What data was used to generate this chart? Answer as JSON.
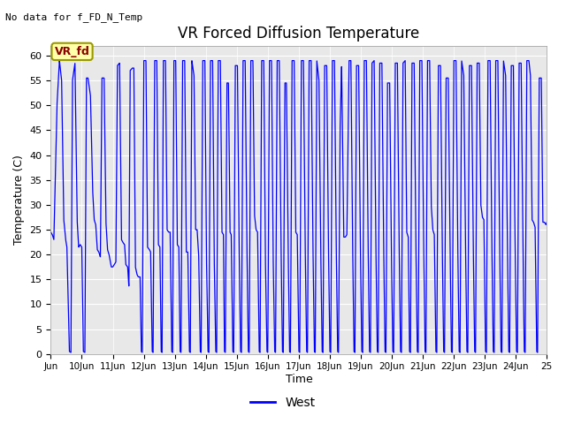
{
  "title": "VR Forced Diffusion Temperature",
  "top_left_text": "No data for f_FD_N_Temp",
  "ylabel": "Temperature (C)",
  "xlabel": "Time",
  "legend_label": "West",
  "legend_line_color": "#0000ff",
  "line_color": "#0000ff",
  "axes_facecolor": "#e8e8e8",
  "fig_facecolor": "#ffffff",
  "ylim": [
    0,
    62
  ],
  "yticks": [
    0,
    5,
    10,
    15,
    20,
    25,
    30,
    35,
    40,
    45,
    50,
    55,
    60
  ],
  "xtick_labels": [
    "Jun",
    "10Jun",
    "11Jun",
    "12Jun",
    "13Jun",
    "14Jun",
    "15Jun",
    "16Jun",
    "17Jun",
    "18Jun",
    "19Jun",
    "20Jun",
    "21Jun",
    "22Jun",
    "23Jun",
    "24Jun",
    "25"
  ],
  "vr_fd_label": "VR_fd",
  "keypoints": [
    [
      0.0,
      24.5
    ],
    [
      0.05,
      24.0
    ],
    [
      0.1,
      23.0
    ],
    [
      0.2,
      50.0
    ],
    [
      0.28,
      59.0
    ],
    [
      0.35,
      55.0
    ],
    [
      0.42,
      27.0
    ],
    [
      0.48,
      23.0
    ],
    [
      0.52,
      21.5
    ],
    [
      0.6,
      0.5
    ],
    [
      0.65,
      0.3
    ],
    [
      0.7,
      55.0
    ],
    [
      0.78,
      58.5
    ],
    [
      0.85,
      27.0
    ],
    [
      0.9,
      21.5
    ],
    [
      0.95,
      22.0
    ],
    [
      1.0,
      21.5
    ],
    [
      1.05,
      0.5
    ],
    [
      1.1,
      0.3
    ],
    [
      1.15,
      55.5
    ],
    [
      1.2,
      55.5
    ],
    [
      1.28,
      52.0
    ],
    [
      1.35,
      33.0
    ],
    [
      1.4,
      27.0
    ],
    [
      1.45,
      26.0
    ],
    [
      1.5,
      21.0
    ],
    [
      1.55,
      20.5
    ],
    [
      1.6,
      19.5
    ],
    [
      1.65,
      55.5
    ],
    [
      1.72,
      55.5
    ],
    [
      1.78,
      26.5
    ],
    [
      1.83,
      21.0
    ],
    [
      1.88,
      20.0
    ],
    [
      1.95,
      17.5
    ],
    [
      2.0,
      17.5
    ],
    [
      2.05,
      18.0
    ],
    [
      2.1,
      18.5
    ],
    [
      2.15,
      58.0
    ],
    [
      2.22,
      58.5
    ],
    [
      2.28,
      23.0
    ],
    [
      2.32,
      22.5
    ],
    [
      2.38,
      22.0
    ],
    [
      2.42,
      18.0
    ],
    [
      2.48,
      17.5
    ],
    [
      2.52,
      13.5
    ],
    [
      2.56,
      57.0
    ],
    [
      2.63,
      57.5
    ],
    [
      2.68,
      57.5
    ],
    [
      2.73,
      17.5
    ],
    [
      2.78,
      16.0
    ],
    [
      2.82,
      15.5
    ],
    [
      2.88,
      15.5
    ],
    [
      2.92,
      0.5
    ],
    [
      2.95,
      0.3
    ],
    [
      3.0,
      59.0
    ],
    [
      3.07,
      59.0
    ],
    [
      3.12,
      21.5
    ],
    [
      3.18,
      21.0
    ],
    [
      3.22,
      20.5
    ],
    [
      3.27,
      0.5
    ],
    [
      3.3,
      0.3
    ],
    [
      3.35,
      59.0
    ],
    [
      3.42,
      59.0
    ],
    [
      3.47,
      22.0
    ],
    [
      3.52,
      21.5
    ],
    [
      3.56,
      0.5
    ],
    [
      3.59,
      0.3
    ],
    [
      3.63,
      59.0
    ],
    [
      3.7,
      59.0
    ],
    [
      3.75,
      25.0
    ],
    [
      3.8,
      24.5
    ],
    [
      3.85,
      24.5
    ],
    [
      3.9,
      0.5
    ],
    [
      3.93,
      0.3
    ],
    [
      3.97,
      59.0
    ],
    [
      4.03,
      59.0
    ],
    [
      4.08,
      22.0
    ],
    [
      4.13,
      21.5
    ],
    [
      4.17,
      0.5
    ],
    [
      4.2,
      0.3
    ],
    [
      4.25,
      59.0
    ],
    [
      4.32,
      59.0
    ],
    [
      4.37,
      20.5
    ],
    [
      4.42,
      20.5
    ],
    [
      4.47,
      0.5
    ],
    [
      4.5,
      0.3
    ],
    [
      4.55,
      59.0
    ],
    [
      4.62,
      56.0
    ],
    [
      4.67,
      25.0
    ],
    [
      4.72,
      25.0
    ],
    [
      4.77,
      20.0
    ],
    [
      4.82,
      0.5
    ],
    [
      4.85,
      0.3
    ],
    [
      4.9,
      59.0
    ],
    [
      4.97,
      59.0
    ],
    [
      5.02,
      20.0
    ],
    [
      5.07,
      0.5
    ],
    [
      5.1,
      0.3
    ],
    [
      5.15,
      59.0
    ],
    [
      5.22,
      59.0
    ],
    [
      5.27,
      20.0
    ],
    [
      5.32,
      0.5
    ],
    [
      5.35,
      0.3
    ],
    [
      5.4,
      59.0
    ],
    [
      5.47,
      59.0
    ],
    [
      5.52,
      24.5
    ],
    [
      5.57,
      24.0
    ],
    [
      5.6,
      0.5
    ],
    [
      5.63,
      0.3
    ],
    [
      5.68,
      54.5
    ],
    [
      5.73,
      54.5
    ],
    [
      5.78,
      24.5
    ],
    [
      5.82,
      24.0
    ],
    [
      5.87,
      0.5
    ],
    [
      5.9,
      0.3
    ],
    [
      5.95,
      58.0
    ],
    [
      6.02,
      58.0
    ],
    [
      6.07,
      24.0
    ],
    [
      6.12,
      0.5
    ],
    [
      6.15,
      0.3
    ],
    [
      6.2,
      59.0
    ],
    [
      6.27,
      59.0
    ],
    [
      6.32,
      25.0
    ],
    [
      6.37,
      0.5
    ],
    [
      6.4,
      0.3
    ],
    [
      6.45,
      59.0
    ],
    [
      6.52,
      59.0
    ],
    [
      6.57,
      28.0
    ],
    [
      6.62,
      25.0
    ],
    [
      6.67,
      24.5
    ],
    [
      6.72,
      0.5
    ],
    [
      6.75,
      0.3
    ],
    [
      6.8,
      59.0
    ],
    [
      6.87,
      59.0
    ],
    [
      6.92,
      20.0
    ],
    [
      6.97,
      0.5
    ],
    [
      7.0,
      0.3
    ],
    [
      7.05,
      59.0
    ],
    [
      7.12,
      59.0
    ],
    [
      7.17,
      20.5
    ],
    [
      7.22,
      0.5
    ],
    [
      7.25,
      0.3
    ],
    [
      7.3,
      59.0
    ],
    [
      7.37,
      59.0
    ],
    [
      7.42,
      25.0
    ],
    [
      7.47,
      0.5
    ],
    [
      7.5,
      0.3
    ],
    [
      7.55,
      54.5
    ],
    [
      7.6,
      54.5
    ],
    [
      7.65,
      24.5
    ],
    [
      7.7,
      0.5
    ],
    [
      7.73,
      0.3
    ],
    [
      7.78,
      59.0
    ],
    [
      7.85,
      59.0
    ],
    [
      7.9,
      24.5
    ],
    [
      7.95,
      24.0
    ],
    [
      8.0,
      0.5
    ],
    [
      8.03,
      0.3
    ],
    [
      8.08,
      59.0
    ],
    [
      8.15,
      59.0
    ],
    [
      8.2,
      24.5
    ],
    [
      8.25,
      0.5
    ],
    [
      8.28,
      0.3
    ],
    [
      8.33,
      59.0
    ],
    [
      8.4,
      59.0
    ],
    [
      8.45,
      24.5
    ],
    [
      8.5,
      0.5
    ],
    [
      8.53,
      0.3
    ],
    [
      8.58,
      59.0
    ],
    [
      8.65,
      55.0
    ],
    [
      8.7,
      24.5
    ],
    [
      8.75,
      0.5
    ],
    [
      8.78,
      0.3
    ],
    [
      8.83,
      58.0
    ],
    [
      8.9,
      58.0
    ],
    [
      8.95,
      24.5
    ],
    [
      9.0,
      0.5
    ],
    [
      9.03,
      0.3
    ],
    [
      9.08,
      59.0
    ],
    [
      9.15,
      59.0
    ],
    [
      9.2,
      25.0
    ],
    [
      9.25,
      0.5
    ],
    [
      9.28,
      0.3
    ],
    [
      9.33,
      45.0
    ],
    [
      9.38,
      58.0
    ],
    [
      9.45,
      23.5
    ],
    [
      9.5,
      23.5
    ],
    [
      9.55,
      24.0
    ],
    [
      9.62,
      59.0
    ],
    [
      9.68,
      59.0
    ],
    [
      9.73,
      24.5
    ],
    [
      9.78,
      0.5
    ],
    [
      9.81,
      0.3
    ],
    [
      9.86,
      58.0
    ],
    [
      9.93,
      58.0
    ],
    [
      9.98,
      24.5
    ],
    [
      10.03,
      0.5
    ],
    [
      10.06,
      0.3
    ],
    [
      10.11,
      59.0
    ],
    [
      10.18,
      59.0
    ],
    [
      10.23,
      24.5
    ],
    [
      10.28,
      0.5
    ],
    [
      10.31,
      0.3
    ],
    [
      10.36,
      58.5
    ],
    [
      10.43,
      59.0
    ],
    [
      10.48,
      24.5
    ],
    [
      10.53,
      0.5
    ],
    [
      10.56,
      0.3
    ],
    [
      10.61,
      58.5
    ],
    [
      10.68,
      58.5
    ],
    [
      10.73,
      25.0
    ],
    [
      10.78,
      0.5
    ],
    [
      10.81,
      0.3
    ],
    [
      10.86,
      54.5
    ],
    [
      10.93,
      54.5
    ],
    [
      10.98,
      23.5
    ],
    [
      11.03,
      0.5
    ],
    [
      11.06,
      0.3
    ],
    [
      11.11,
      58.5
    ],
    [
      11.18,
      58.5
    ],
    [
      11.23,
      24.5
    ],
    [
      11.28,
      0.5
    ],
    [
      11.31,
      0.3
    ],
    [
      11.36,
      58.5
    ],
    [
      11.43,
      59.0
    ],
    [
      11.48,
      24.5
    ],
    [
      11.53,
      23.5
    ],
    [
      11.57,
      0.5
    ],
    [
      11.6,
      0.3
    ],
    [
      11.65,
      58.5
    ],
    [
      11.72,
      58.5
    ],
    [
      11.77,
      25.0
    ],
    [
      11.82,
      0.5
    ],
    [
      11.85,
      0.3
    ],
    [
      11.9,
      59.0
    ],
    [
      11.97,
      59.0
    ],
    [
      12.02,
      25.0
    ],
    [
      12.07,
      0.5
    ],
    [
      12.1,
      0.3
    ],
    [
      12.15,
      59.0
    ],
    [
      12.22,
      59.0
    ],
    [
      12.27,
      30.0
    ],
    [
      12.32,
      25.0
    ],
    [
      12.37,
      24.0
    ],
    [
      12.42,
      0.5
    ],
    [
      12.45,
      0.3
    ],
    [
      12.5,
      58.0
    ],
    [
      12.57,
      58.0
    ],
    [
      12.62,
      25.0
    ],
    [
      12.67,
      0.5
    ],
    [
      12.7,
      0.3
    ],
    [
      12.75,
      55.5
    ],
    [
      12.82,
      55.5
    ],
    [
      12.87,
      25.5
    ],
    [
      12.92,
      0.5
    ],
    [
      12.95,
      0.3
    ],
    [
      13.0,
      59.0
    ],
    [
      13.07,
      59.0
    ],
    [
      13.12,
      25.0
    ],
    [
      13.17,
      0.5
    ],
    [
      13.2,
      0.3
    ],
    [
      13.25,
      59.0
    ],
    [
      13.32,
      56.0
    ],
    [
      13.37,
      25.0
    ],
    [
      13.42,
      0.5
    ],
    [
      13.45,
      0.3
    ],
    [
      13.5,
      58.0
    ],
    [
      13.57,
      58.0
    ],
    [
      13.62,
      25.0
    ],
    [
      13.67,
      0.5
    ],
    [
      13.7,
      0.3
    ],
    [
      13.75,
      58.5
    ],
    [
      13.82,
      58.5
    ],
    [
      13.87,
      30.0
    ],
    [
      13.92,
      27.5
    ],
    [
      13.97,
      27.0
    ],
    [
      14.02,
      0.5
    ],
    [
      14.05,
      0.3
    ],
    [
      14.1,
      59.0
    ],
    [
      14.17,
      59.0
    ],
    [
      14.22,
      25.0
    ],
    [
      14.27,
      0.5
    ],
    [
      14.3,
      0.3
    ],
    [
      14.35,
      59.0
    ],
    [
      14.42,
      59.0
    ],
    [
      14.47,
      25.5
    ],
    [
      14.52,
      0.5
    ],
    [
      14.55,
      0.3
    ],
    [
      14.6,
      59.0
    ],
    [
      14.67,
      56.0
    ],
    [
      14.72,
      26.0
    ],
    [
      14.77,
      0.5
    ],
    [
      14.8,
      0.3
    ],
    [
      14.85,
      58.0
    ],
    [
      14.92,
      58.0
    ],
    [
      14.97,
      25.0
    ],
    [
      15.02,
      0.5
    ],
    [
      15.05,
      0.3
    ],
    [
      15.1,
      58.5
    ],
    [
      15.17,
      58.5
    ],
    [
      15.22,
      25.5
    ],
    [
      15.27,
      0.5
    ],
    [
      15.3,
      0.3
    ],
    [
      15.35,
      59.0
    ],
    [
      15.42,
      59.0
    ],
    [
      15.47,
      56.0
    ],
    [
      15.52,
      27.0
    ],
    [
      15.57,
      26.5
    ],
    [
      15.62,
      25.5
    ],
    [
      15.67,
      0.5
    ],
    [
      15.7,
      0.3
    ],
    [
      15.75,
      55.5
    ],
    [
      15.82,
      55.5
    ],
    [
      15.87,
      26.5
    ],
    [
      15.92,
      26.5
    ],
    [
      15.97,
      26.0
    ],
    [
      16.0,
      26.5
    ]
  ]
}
